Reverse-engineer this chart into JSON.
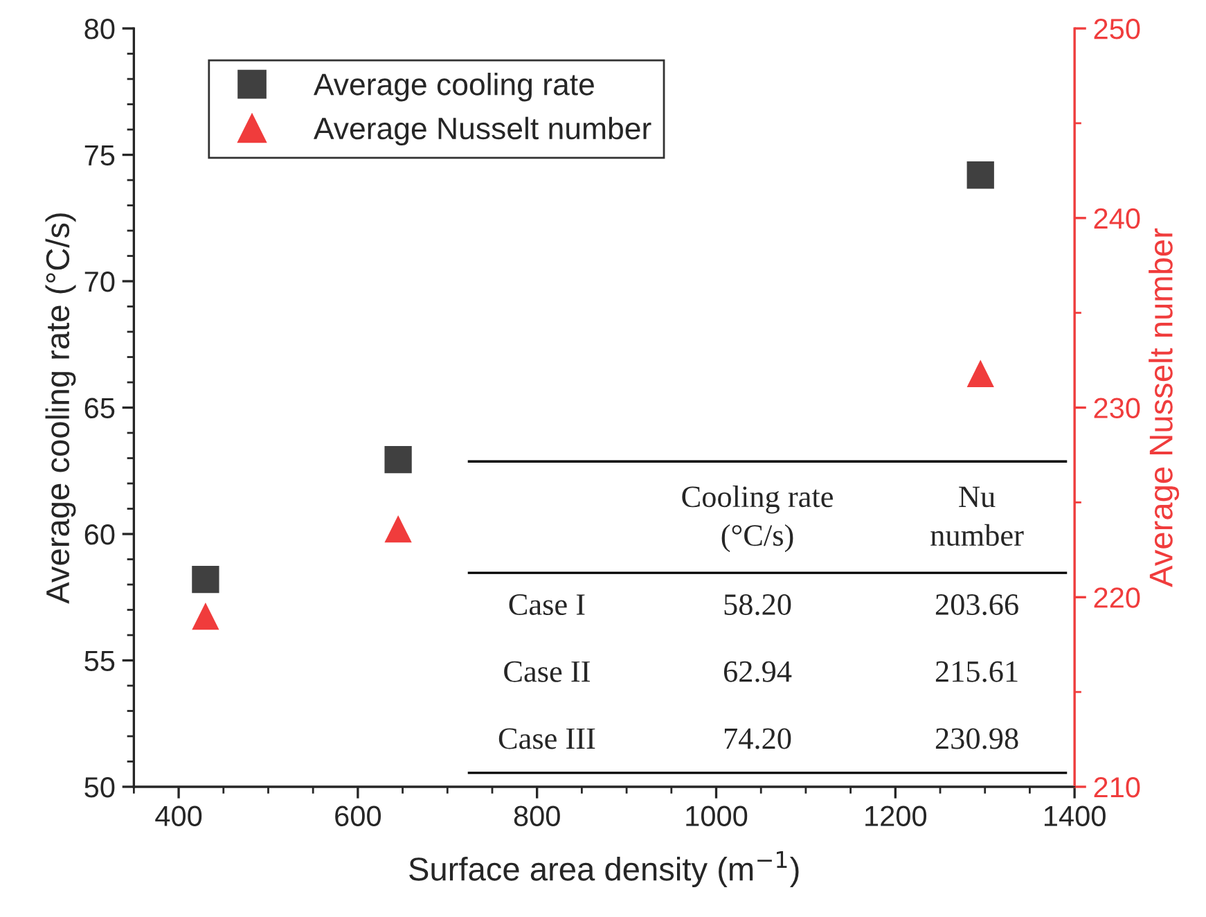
{
  "chart_data": {
    "type": "scatter",
    "xlabel": "Surface area density (m$^{−1}$)",
    "ylabel": "Average cooling rate (°C/s)",
    "y2label": "Average Nusselt number",
    "xlim": [
      350,
      1400
    ],
    "xticks": [
      400,
      600,
      800,
      1000,
      1200,
      1400
    ],
    "ylim": [
      50,
      80
    ],
    "yticks": [
      50,
      55,
      60,
      65,
      70,
      75,
      80
    ],
    "y2lim": [
      210,
      250
    ],
    "y2ticks": [
      210,
      220,
      230,
      240,
      250
    ],
    "series": [
      {
        "name": "Average cooling rate",
        "color": "#404040",
        "marker": "square",
        "x": [
          430,
          645,
          1295
        ],
        "values": [
          58.2,
          62.94,
          74.2
        ]
      },
      {
        "name": "Average Nusselt number",
        "color": "#f03c3c",
        "marker": "triangle",
        "axis": "y2",
        "x": [
          430,
          645,
          1295
        ],
        "values": [
          219.0,
          223.6,
          231.8
        ]
      }
    ],
    "annotations": [
      "Cooling rate\n(°C/s)",
      "Nu\nnumber",
      "Case I",
      "58.20",
      "203.66",
      "Case II",
      "62.94",
      "215.61",
      "Case III",
      "74.20",
      "230.98"
    ],
    "legend": "top left",
    "grid": false
  }
}
